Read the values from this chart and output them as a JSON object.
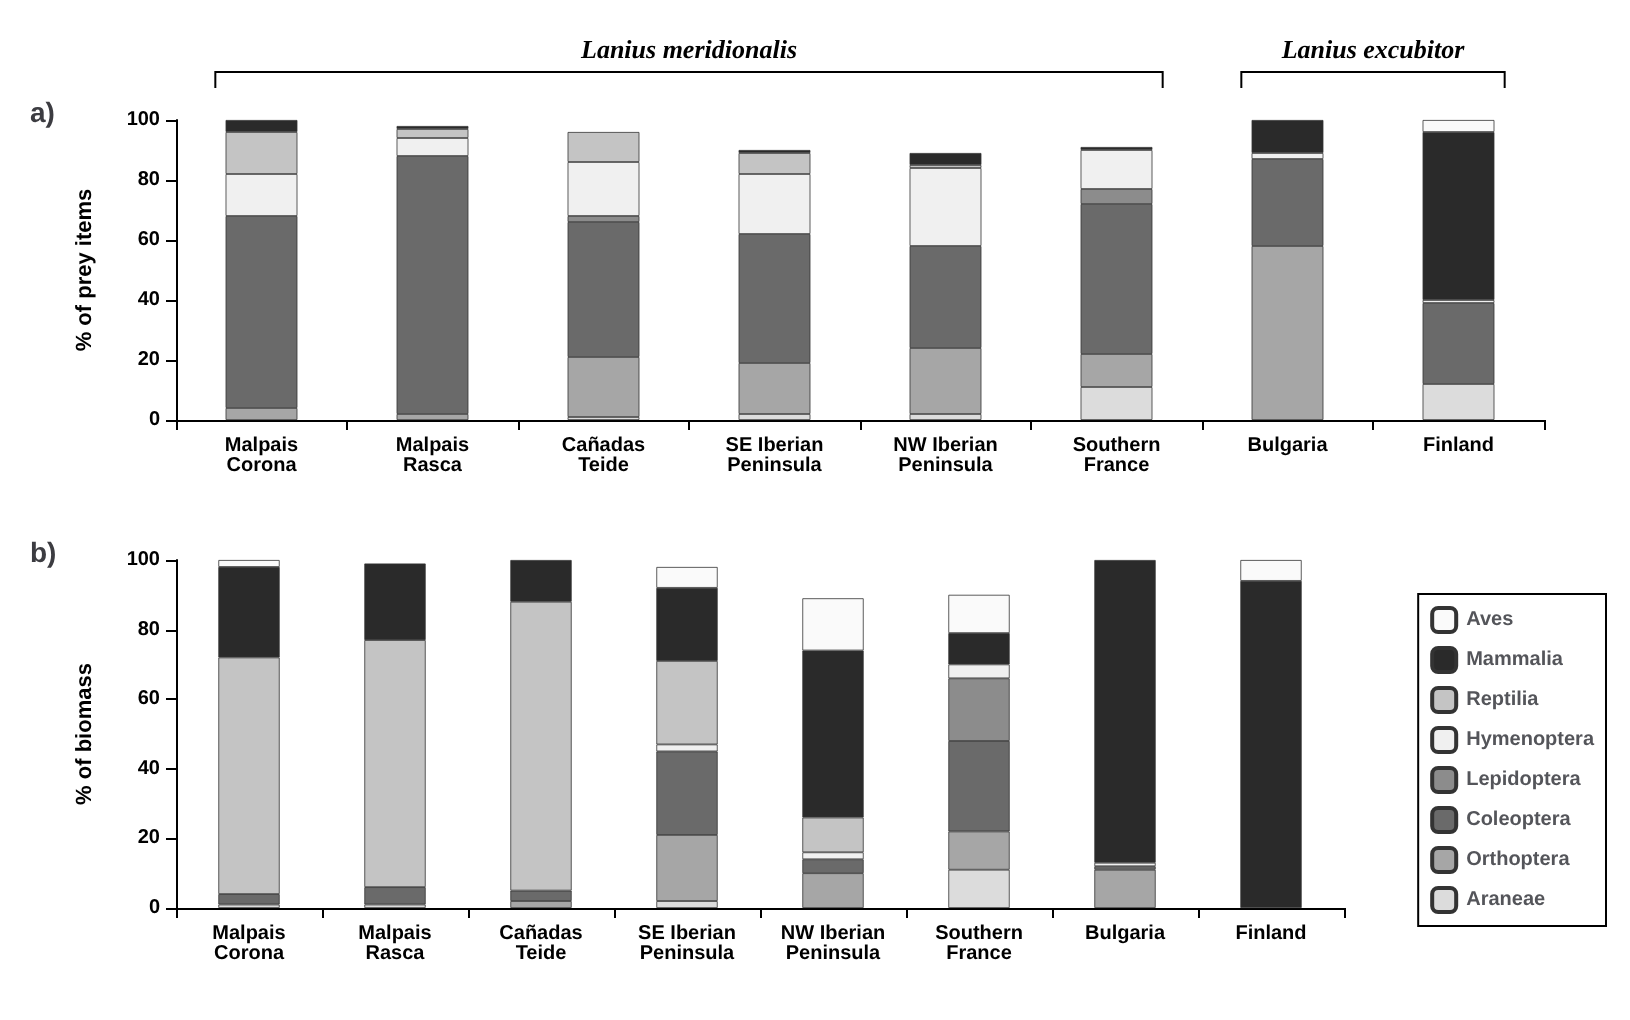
{
  "chart_data": [
    {
      "type": "bar",
      "title": "a)",
      "ylabel": "% of prey items",
      "stacked": true,
      "grid": false,
      "legend": false,
      "ylim": [
        0,
        100
      ],
      "yticks": [
        0,
        20,
        40,
        60,
        80,
        100
      ],
      "annotations": [
        "Lanius meridionalis",
        "Lanius excubitor"
      ],
      "categories": [
        "Malpais\nCorona",
        "Malpais\nRasca",
        "Cañadas\nTeide",
        "SE Iberian\nPeninsula",
        "NW Iberian\nPeninsula",
        "Southern\nFrance",
        "Bulgaria",
        "Finland"
      ],
      "series": [
        {
          "color": "#dcdcdc",
          "values": [
            0,
            0,
            1,
            2,
            2,
            11,
            0,
            12
          ]
        },
        {
          "color": "#a6a6a6",
          "values": [
            4,
            2,
            20,
            17,
            22,
            11,
            58,
            0
          ]
        },
        {
          "color": "#6a6a6a",
          "values": [
            64,
            86,
            45,
            43,
            34,
            50,
            29,
            27
          ]
        },
        {
          "color": "#8c8c8c",
          "values": [
            0,
            0,
            2,
            0,
            0,
            5,
            0,
            0
          ]
        },
        {
          "color": "#f0f0f0",
          "values": [
            14,
            6,
            18,
            20,
            26,
            13,
            2,
            1
          ]
        },
        {
          "color": "#c4c4c4",
          "values": [
            14,
            3,
            10,
            7,
            1,
            0,
            0,
            0
          ]
        },
        {
          "color": "#2a2a2a",
          "values": [
            4,
            1,
            0,
            1,
            4,
            1,
            11,
            56
          ]
        },
        {
          "color": "#fafafa",
          "values": [
            0,
            0,
            0,
            0,
            0,
            0,
            0,
            4
          ]
        }
      ]
    },
    {
      "type": "bar",
      "title": "b)",
      "ylabel": "% of biomass",
      "stacked": true,
      "grid": false,
      "legend": "right",
      "ylim": [
        0,
        100
      ],
      "yticks": [
        0,
        20,
        40,
        60,
        80,
        100
      ],
      "categories": [
        "Malpais\nCorona",
        "Malpais\nRasca",
        "Cañadas\nTeide",
        "SE Iberian\nPeninsula",
        "NW Iberian\nPeninsula",
        "Southern\nFrance",
        "Bulgaria",
        "Finland"
      ],
      "series": [
        {
          "name": "Araneae",
          "color": "#dcdcdc",
          "values": [
            1,
            1,
            0,
            2,
            0,
            11,
            0,
            0
          ]
        },
        {
          "name": "Orthoptera",
          "color": "#a6a6a6",
          "values": [
            0,
            0,
            2,
            19,
            10,
            11,
            11,
            0
          ]
        },
        {
          "name": "Coleoptera",
          "color": "#6a6a6a",
          "values": [
            3,
            5,
            3,
            24,
            4,
            26,
            1,
            0
          ]
        },
        {
          "name": "Lepidoptera",
          "color": "#8c8c8c",
          "values": [
            0,
            0,
            0,
            0,
            0,
            18,
            0,
            0
          ]
        },
        {
          "name": "Hymenoptera",
          "color": "#f0f0f0",
          "values": [
            0,
            0,
            0,
            2,
            2,
            4,
            1,
            0
          ]
        },
        {
          "name": "Reptilia",
          "color": "#c4c4c4",
          "values": [
            68,
            71,
            83,
            24,
            10,
            0,
            0,
            0
          ]
        },
        {
          "name": "Mammalia",
          "color": "#2a2a2a",
          "values": [
            26,
            22,
            12,
            21,
            48,
            9,
            87,
            94
          ]
        },
        {
          "name": "Aves",
          "color": "#fafafa",
          "values": [
            2,
            0,
            0,
            6,
            15,
            11,
            0,
            6
          ]
        }
      ]
    }
  ]
}
